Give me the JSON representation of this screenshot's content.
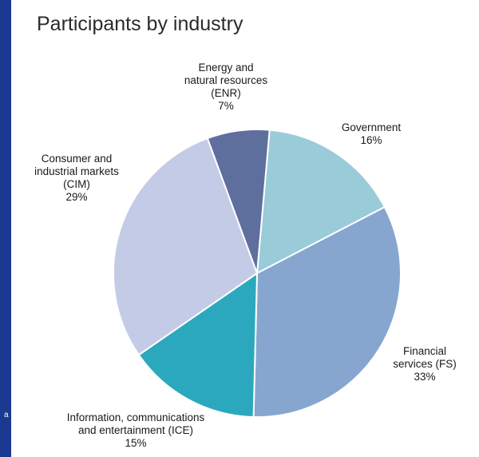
{
  "stray_mark": "a",
  "chart_data": {
    "type": "pie",
    "title": "Participants by industry",
    "slices": [
      {
        "id": "gov",
        "lines": [
          "Government",
          "16%"
        ],
        "value": 16,
        "color": "#99cbd9"
      },
      {
        "id": "fs",
        "lines": [
          "Financial",
          "services (FS)",
          "33%"
        ],
        "value": 33,
        "color": "#86a6cf"
      },
      {
        "id": "ice",
        "lines": [
          "Information, communications",
          "and entertainment (ICE)",
          "15%"
        ],
        "value": 15,
        "color": "#2ba8be"
      },
      {
        "id": "cim",
        "lines": [
          "Consumer and",
          "industrial markets",
          "(CIM)",
          "29%"
        ],
        "value": 29,
        "color": "#c3cbe6"
      },
      {
        "id": "enr",
        "lines": [
          "Energy and",
          "natural resources",
          "(ENR)",
          "7%"
        ],
        "value": 7,
        "color": "#5e6f9e"
      }
    ],
    "start_angle_deg": 5,
    "direction": "clockwise",
    "legend": "none"
  }
}
